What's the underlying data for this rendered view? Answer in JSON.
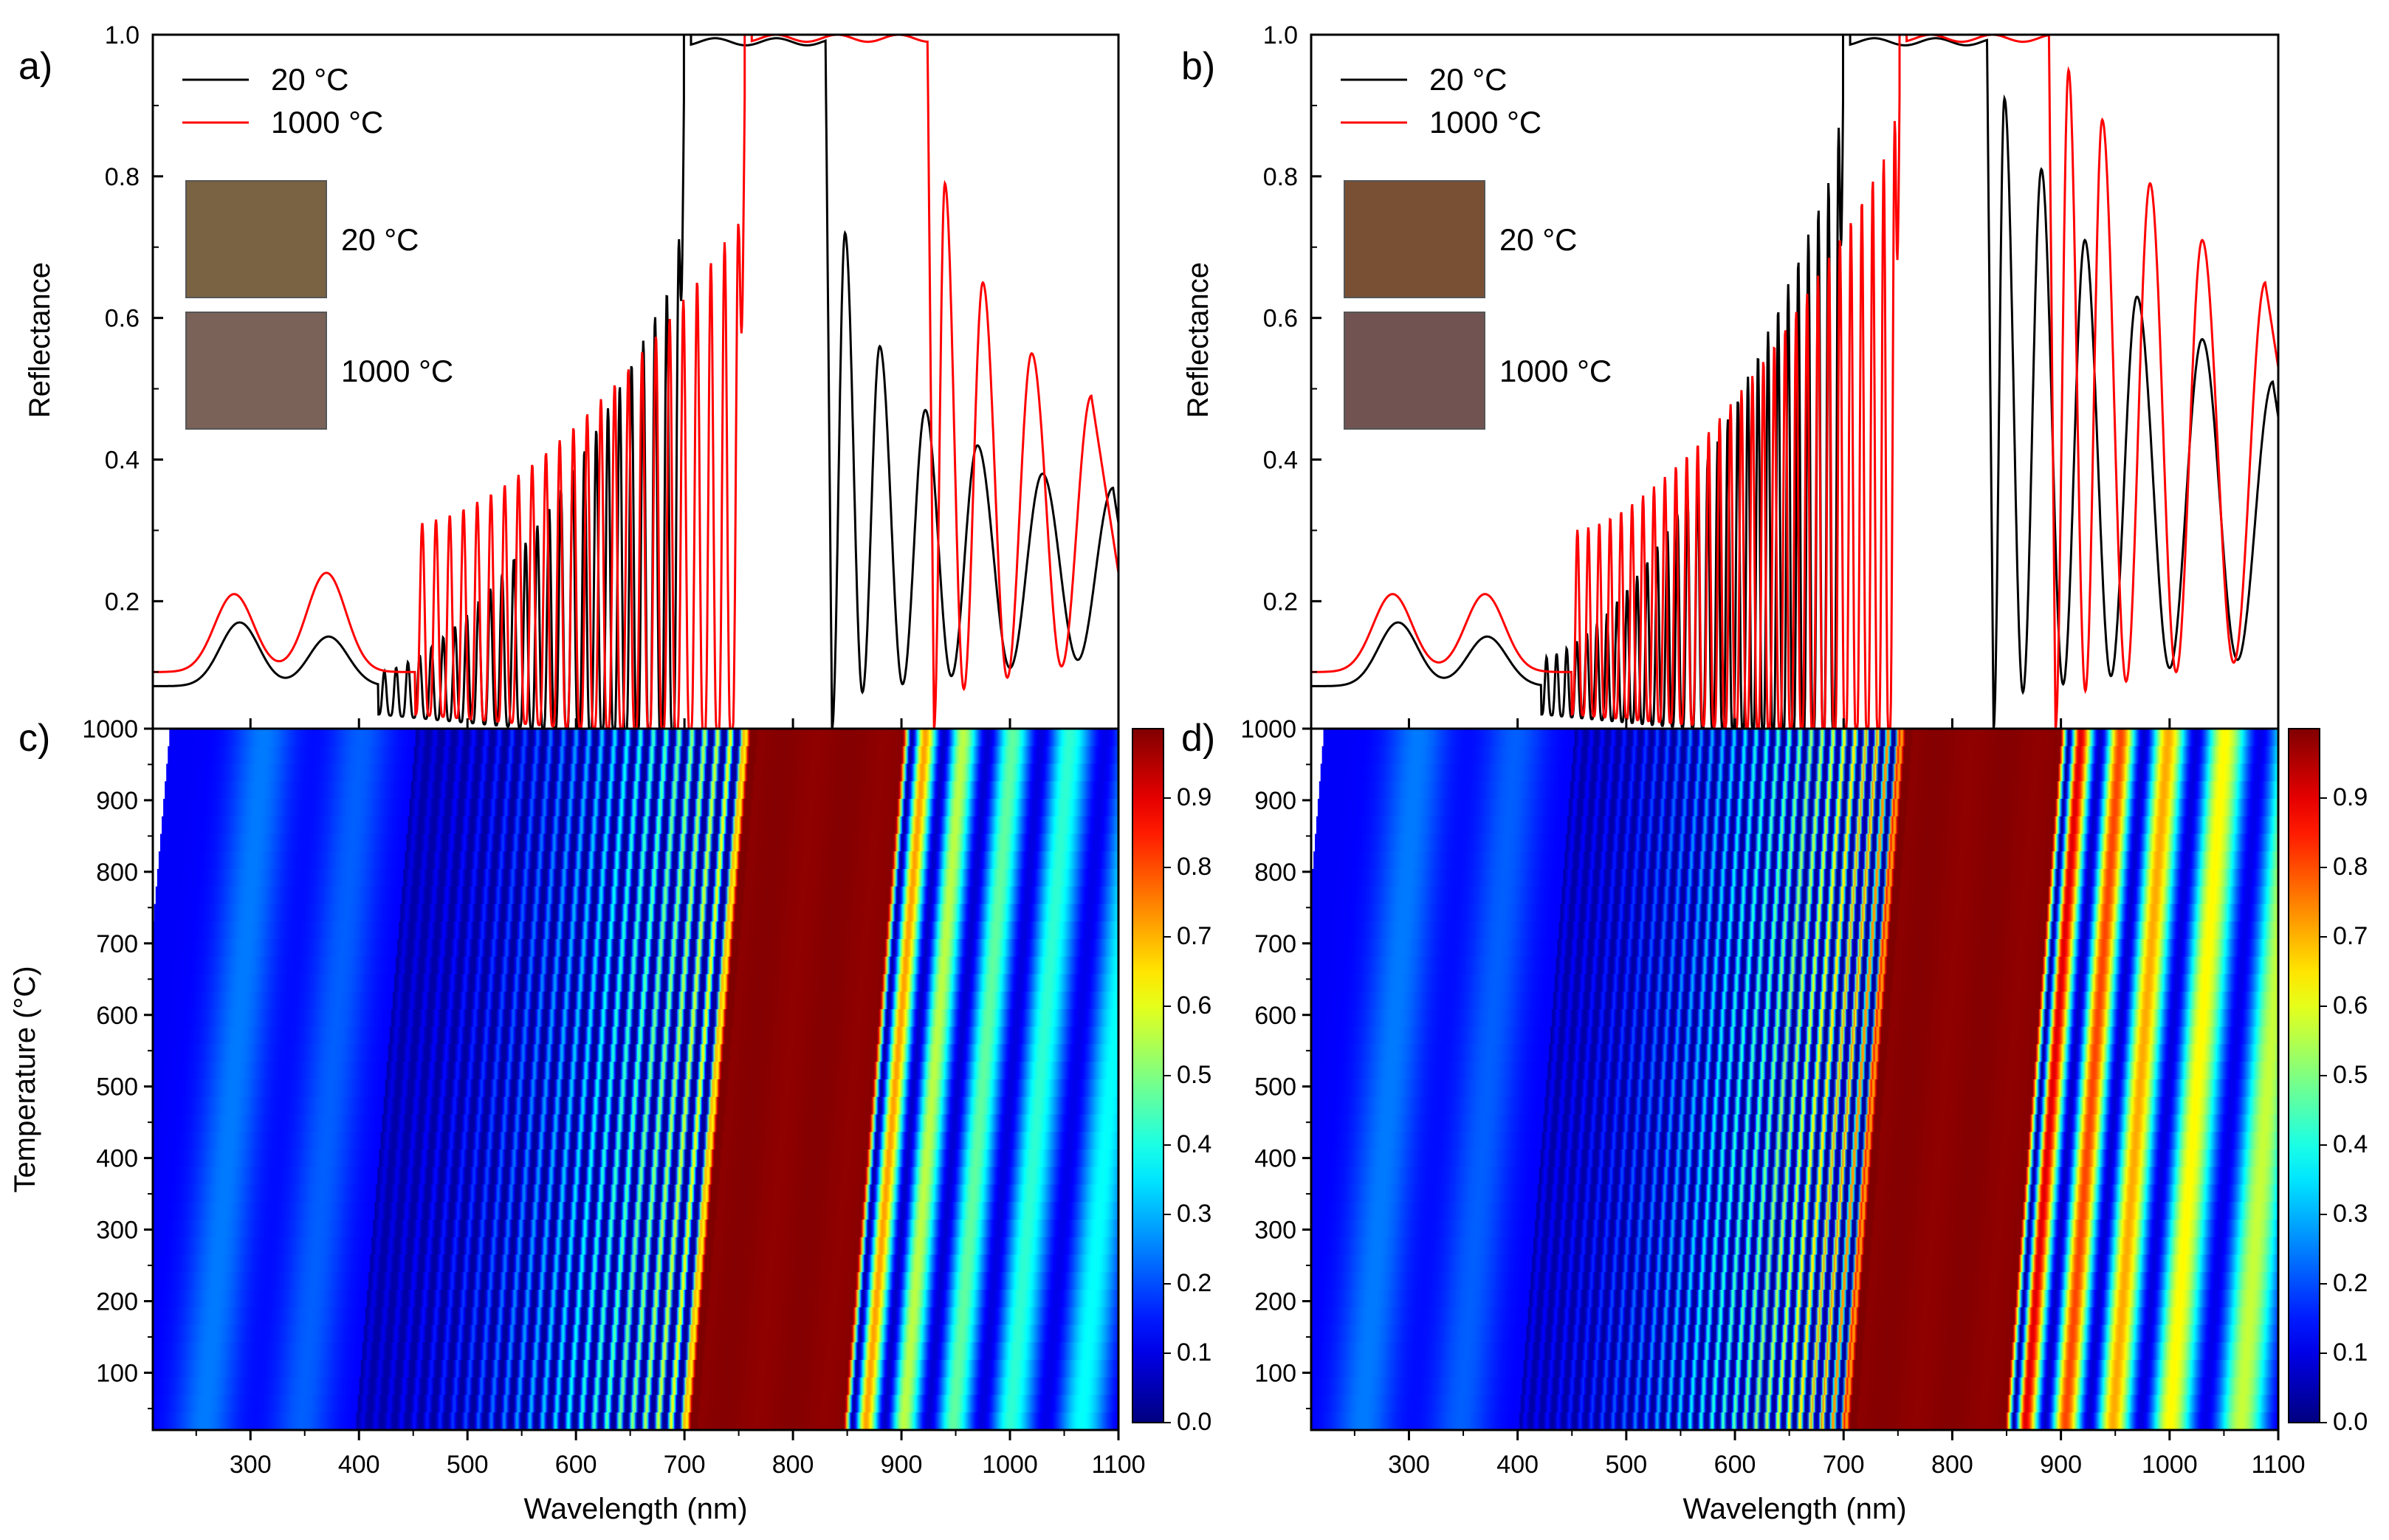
{
  "figure": {
    "panels": [
      {
        "id": "a",
        "panel_label": "a)"
      },
      {
        "id": "b",
        "panel_label": "b)"
      },
      {
        "id": "c",
        "panel_label": "c)"
      },
      {
        "id": "d",
        "panel_label": "d)"
      }
    ]
  },
  "chart_data": [
    {
      "id": "a",
      "type": "line",
      "title": "",
      "panel_label": "a)",
      "xlabel": "Wavelength (nm)",
      "ylabel": "Reflectance",
      "xlim": [
        210,
        1100
      ],
      "ylim": [
        0.02,
        1.0
      ],
      "xticks": [
        300,
        400,
        500,
        600,
        700,
        800,
        900,
        1000,
        1100
      ],
      "yticks": [
        0.2,
        0.4,
        0.6,
        0.8,
        1.0
      ],
      "legend_position": "top-left",
      "series": [
        {
          "name": "20 °C",
          "color": "#000000",
          "features": {
            "bandStart": 700,
            "bandEnd": 836,
            "bandMax": 0.99,
            "ripStart": 418,
            "ripCount": 26,
            "ripBase": 0.04,
            "ripPeakStart": 0.1,
            "ripPeakEnd": 0.69,
            "uvBase": 0.08,
            "uvBumps": [
              [
                290,
                0.17
              ],
              [
                372,
                0.15
              ]
            ],
            "post": [
              [
                848,
                0.72
              ],
              [
                880,
                0.56
              ],
              [
                922,
                0.47
              ],
              [
                970,
                0.42
              ],
              [
                1030,
                0.38
              ],
              [
                1095,
                0.36
              ]
            ]
          }
        },
        {
          "name": "1000 °C",
          "color": "#ff0000",
          "features": {
            "bandStart": 756,
            "bandEnd": 930,
            "bandMax": 0.995,
            "ripStart": 452,
            "ripCount": 24,
            "ripBase": 0.04,
            "ripPeakStart": 0.31,
            "ripPeakEnd": 0.75,
            "uvBase": 0.1,
            "uvBumps": [
              [
                285,
                0.21
              ],
              [
                370,
                0.24
              ]
            ],
            "post": [
              [
                940,
                0.79
              ],
              [
                975,
                0.65
              ],
              [
                1020,
                0.55
              ],
              [
                1075,
                0.49
              ]
            ]
          }
        }
      ],
      "swatches": [
        {
          "label": "20 °C",
          "color": "#7a6343"
        },
        {
          "label": "1000 °C",
          "color": "#7a6258"
        }
      ]
    },
    {
      "id": "b",
      "type": "line",
      "title": "",
      "panel_label": "b)",
      "xlabel": "Wavelength (nm)",
      "ylabel": "Reflectance",
      "xlim": [
        210,
        1100
      ],
      "ylim": [
        0.02,
        1.0
      ],
      "xticks": [
        300,
        400,
        500,
        600,
        700,
        800,
        900,
        1000,
        1100
      ],
      "yticks": [
        0.2,
        0.4,
        0.6,
        0.8,
        1.0
      ],
      "legend_position": "top-left",
      "series": [
        {
          "name": "20 °C",
          "color": "#000000",
          "features": {
            "bandStart": 700,
            "bandEnd": 838,
            "bandMax": 0.99,
            "ripStart": 422,
            "ripCount": 30,
            "ripBase": 0.04,
            "ripPeakStart": 0.12,
            "ripPeakEnd": 0.85,
            "uvBase": 0.08,
            "uvBumps": [
              [
                290,
                0.17
              ],
              [
                372,
                0.15
              ]
            ],
            "post": [
              [
                848,
                0.91
              ],
              [
                882,
                0.81
              ],
              [
                922,
                0.71
              ],
              [
                970,
                0.63
              ],
              [
                1030,
                0.57
              ],
              [
                1095,
                0.51
              ]
            ]
          }
        },
        {
          "name": "1000 °C",
          "color": "#ff0000",
          "features": {
            "bandStart": 752,
            "bandEnd": 895,
            "bandMax": 0.995,
            "ripStart": 450,
            "ripCount": 30,
            "ripBase": 0.04,
            "ripPeakStart": 0.3,
            "ripPeakEnd": 0.87,
            "uvBase": 0.1,
            "uvBumps": [
              [
                285,
                0.21
              ],
              [
                370,
                0.21
              ]
            ],
            "post": [
              [
                907,
                0.95
              ],
              [
                938,
                0.88
              ],
              [
                982,
                0.79
              ],
              [
                1030,
                0.71
              ],
              [
                1088,
                0.65
              ]
            ]
          }
        }
      ],
      "swatches": [
        {
          "label": "20 °C",
          "color": "#7a5034"
        },
        {
          "label": "1000 °C",
          "color": "#715452"
        }
      ]
    },
    {
      "id": "c",
      "type": "heatmap",
      "title": "",
      "panel_label": "c)",
      "xlabel": "Wavelength (nm)",
      "ylabel": "Temperature (°C)",
      "xlim": [
        210,
        1100
      ],
      "ylim": [
        20,
        1000
      ],
      "xticks": [
        300,
        400,
        500,
        600,
        700,
        800,
        900,
        1000,
        1100
      ],
      "yticks": [
        100,
        200,
        300,
        400,
        500,
        600,
        700,
        800,
        900,
        1000
      ],
      "colorbar": {
        "ticks": [
          0.0,
          0.1,
          0.2,
          0.3,
          0.4,
          0.5,
          0.6,
          0.7,
          0.8,
          0.9
        ],
        "range": [
          0,
          1
        ],
        "colormap": "jet"
      },
      "band_start_low": 700,
      "band_start_high": 756,
      "band_end_low": 836,
      "band_end_high": 930,
      "fringe_start_low": 420,
      "fringe_start_high": 452,
      "fringe_count": 26,
      "post_fringe_count": 8
    },
    {
      "id": "d",
      "type": "heatmap",
      "title": "",
      "panel_label": "d)",
      "xlabel": "Wavelength (nm)",
      "ylabel": "",
      "xlim": [
        210,
        1100
      ],
      "ylim": [
        20,
        1000
      ],
      "xticks": [
        300,
        400,
        500,
        600,
        700,
        800,
        900,
        1000,
        1100
      ],
      "yticks": [
        100,
        200,
        300,
        400,
        500,
        600,
        700,
        800,
        900,
        1000
      ],
      "colorbar": {
        "ticks": [
          0.0,
          0.1,
          0.2,
          0.3,
          0.4,
          0.5,
          0.6,
          0.7,
          0.8,
          0.9
        ],
        "range": [
          0,
          1
        ],
        "colormap": "jet"
      },
      "band_start_low": 700,
      "band_start_high": 752,
      "band_end_low": 838,
      "band_end_high": 895,
      "fringe_start_low": 422,
      "fringe_start_high": 450,
      "fringe_count": 30,
      "post_fringe_count": 10
    }
  ]
}
